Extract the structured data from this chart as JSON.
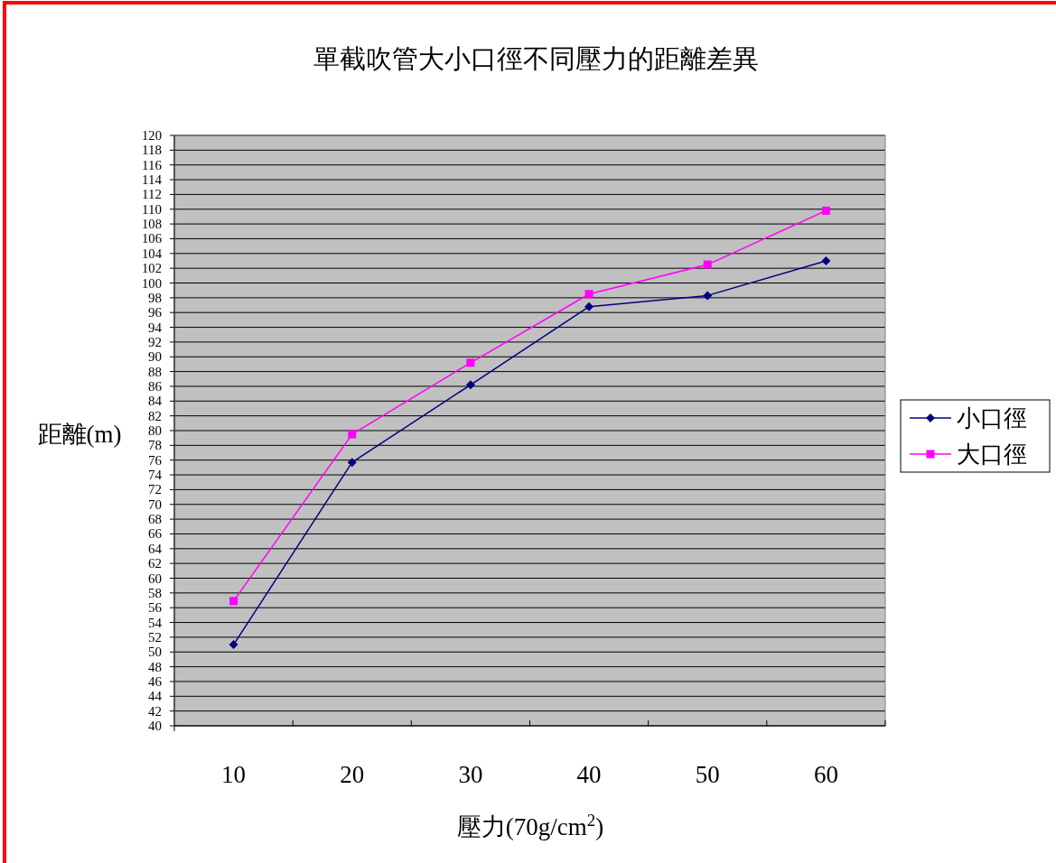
{
  "chart_data": {
    "type": "line",
    "title": "單截吹管大小口徑不同壓力的距離差異",
    "xlabel": "壓力(70g/cm$^{2}$)",
    "ylabel": "距離(m)",
    "categories": [
      "10",
      "20",
      "30",
      "40",
      "50",
      "60"
    ],
    "series": [
      {
        "name": "小口徑",
        "color": "#000080",
        "marker": "diamond",
        "values": [
          51,
          75.7,
          86.2,
          96.8,
          98.3,
          103
        ]
      },
      {
        "name": "大口徑",
        "color": "#ff00ff",
        "marker": "square",
        "values": [
          56.9,
          79.5,
          89.2,
          98.5,
          102.5,
          109.8
        ]
      }
    ],
    "ylim": [
      40,
      120
    ],
    "yticks": [
      40,
      42,
      44,
      46,
      48,
      50,
      52,
      54,
      56,
      58,
      60,
      62,
      64,
      66,
      68,
      70,
      72,
      74,
      76,
      78,
      80,
      82,
      84,
      86,
      88,
      90,
      92,
      94,
      96,
      98,
      100,
      102,
      104,
      106,
      108,
      110,
      112,
      114,
      116,
      118,
      120
    ],
    "grid": "y",
    "legend": "right"
  }
}
